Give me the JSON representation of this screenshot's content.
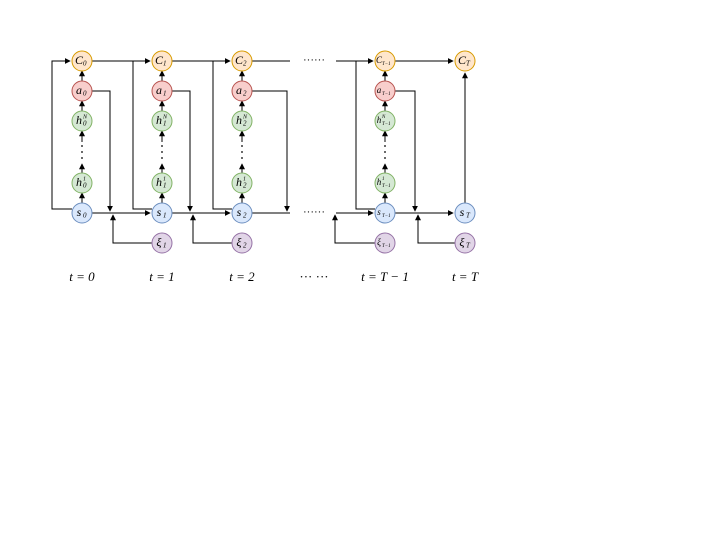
{
  "columns": [
    {
      "time": "t = 0",
      "nodes": {
        "C": {
          "base": "C",
          "sub": "0"
        },
        "a": {
          "base": "a",
          "sub": "0"
        },
        "hN": {
          "base": "h",
          "sub": "0",
          "sup": "N"
        },
        "h1": {
          "base": "h",
          "sub": "0",
          "sup": "1"
        },
        "s": {
          "base": "s",
          "sub": "0"
        }
      }
    },
    {
      "time": "t = 1",
      "nodes": {
        "C": {
          "base": "C",
          "sub": "1"
        },
        "a": {
          "base": "a",
          "sub": "1"
        },
        "hN": {
          "base": "h",
          "sub": "1",
          "sup": "N"
        },
        "h1": {
          "base": "h",
          "sub": "1",
          "sup": "1"
        },
        "s": {
          "base": "s",
          "sub": "1"
        },
        "xi": {
          "base": "ξ",
          "sub": "1"
        }
      }
    },
    {
      "time": "t = 2",
      "nodes": {
        "C": {
          "base": "C",
          "sub": "2"
        },
        "a": {
          "base": "a",
          "sub": "2"
        },
        "hN": {
          "base": "h",
          "sub": "2",
          "sup": "N"
        },
        "h1": {
          "base": "h",
          "sub": "2",
          "sup": "1"
        },
        "s": {
          "base": "s",
          "sub": "2"
        },
        "xi": {
          "base": "ξ",
          "sub": "2"
        }
      }
    },
    {
      "time": "t = T − 1",
      "nodes": {
        "C": {
          "base": "C",
          "sub": "T−1"
        },
        "a": {
          "base": "a",
          "sub": "T−1"
        },
        "hN": {
          "base": "h",
          "sub": "T−1",
          "sup": "N"
        },
        "h1": {
          "base": "h",
          "sub": "T−1",
          "sup": "1"
        },
        "s": {
          "base": "s",
          "sub": "T−1"
        },
        "xi": {
          "base": "ξ",
          "sub": "T−1"
        }
      }
    },
    {
      "time": "t = T",
      "nodes": {
        "C": {
          "base": "C",
          "sub": "T"
        },
        "s": {
          "base": "s",
          "sub": "T"
        },
        "xi": {
          "base": "ξ",
          "sub": "T"
        }
      }
    }
  ],
  "ellipses": {
    "c_row": "······",
    "s_row": "······",
    "time_row": "··· ···"
  }
}
